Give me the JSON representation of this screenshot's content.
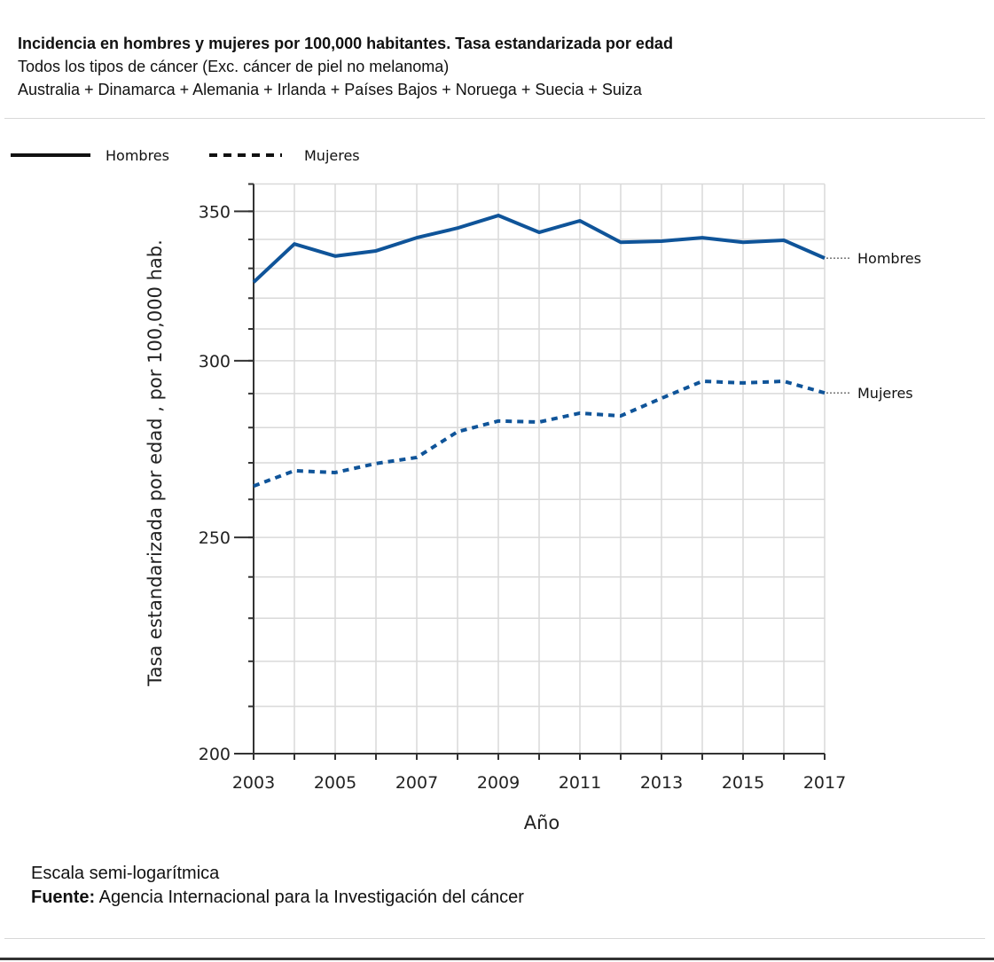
{
  "header": {
    "title": "Incidencia en hombres y mujeres  por 100,000 habitantes. Tasa estandarizada por edad",
    "subtitle1": "Todos los tipos de cáncer (Exc. cáncer de piel no melanoma)",
    "subtitle2": "Australia + Dinamarca + Alemania + Irlanda + Países Bajos + Noruega + Suecia + Suiza"
  },
  "footer": {
    "note": "Escala semi-logarítmica",
    "source_label": "Fuente:",
    "source": " Agencia Internacional para la Investigación del cáncer"
  },
  "colors": {
    "line": "#0f5499",
    "grid": "#d9d9d9"
  },
  "chart_data": {
    "type": "line",
    "title": "Incidencia en hombres y mujeres  por 100,000 habitantes. Tasa estandarizada por edad",
    "xlabel": "Año",
    "ylabel": "Tasa estandarizada por edad , por 100,000 hab.",
    "yscale": "log",
    "ylim": [
      200,
      360
    ],
    "xlim": [
      2003,
      2017
    ],
    "yticks": [
      200,
      250,
      300,
      350
    ],
    "ytick_labels": [
      "200",
      "250",
      "300",
      "350"
    ],
    "ygrid": [
      210,
      220,
      230,
      240,
      250,
      260,
      270,
      280,
      290,
      300,
      310,
      320,
      330,
      340,
      350,
      360
    ],
    "xticks": [
      2003,
      2004,
      2005,
      2006,
      2007,
      2008,
      2009,
      2010,
      2011,
      2012,
      2013,
      2014,
      2015,
      2016,
      2017
    ],
    "xtick_labels": [
      "2003",
      "2005",
      "2007",
      "2009",
      "2011",
      "2013",
      "2015",
      "2017"
    ],
    "legend": {
      "placement": "top-left",
      "entries": [
        "Hombres",
        "Mujeres"
      ]
    },
    "x": [
      2003,
      2004,
      2005,
      2006,
      2007,
      2008,
      2009,
      2010,
      2011,
      2012,
      2013,
      2014,
      2015,
      2016,
      2017
    ],
    "series": [
      {
        "name": "Hombres",
        "style": "solid",
        "end_label": "Hombres",
        "values": [
          325.3,
          338.4,
          334.2,
          336.0,
          340.6,
          344.0,
          348.5,
          342.5,
          346.6,
          339.0,
          339.4,
          340.6,
          339.0,
          339.7,
          333.5
        ]
      },
      {
        "name": "Mujeres",
        "style": "dotted",
        "end_label": "Mujeres",
        "values": [
          263.6,
          267.8,
          267.3,
          269.8,
          271.5,
          278.8,
          281.9,
          281.6,
          284.2,
          283.4,
          288.6,
          293.7,
          293.2,
          293.7,
          290.2
        ]
      }
    ]
  }
}
